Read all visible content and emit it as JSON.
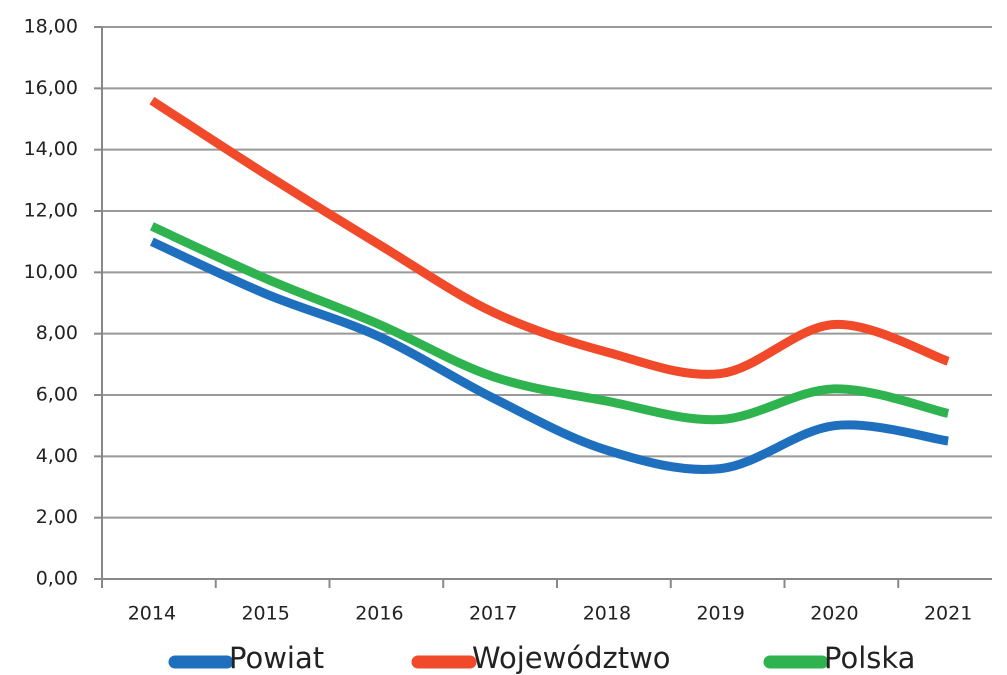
{
  "chart_data": {
    "type": "line",
    "categories": [
      "2014",
      "2015",
      "2016",
      "2017",
      "2018",
      "2019",
      "2020",
      "2021"
    ],
    "series": [
      {
        "name": "Powiat",
        "color": "#1f6fbf",
        "values": [
          11.0,
          9.3,
          7.9,
          5.9,
          4.2,
          3.6,
          5.0,
          4.5
        ]
      },
      {
        "name": "Województwo",
        "color": "#f04a2a",
        "values": [
          15.6,
          13.2,
          10.9,
          8.7,
          7.4,
          6.7,
          8.3,
          7.1
        ]
      },
      {
        "name": "Polska",
        "color": "#2eb34f",
        "values": [
          11.5,
          9.8,
          8.3,
          6.6,
          5.8,
          5.2,
          6.2,
          5.4
        ]
      }
    ],
    "ylim": [
      0,
      18
    ],
    "yticks": [
      {
        "value": 0,
        "label": "0,00"
      },
      {
        "value": 2,
        "label": "2,00"
      },
      {
        "value": 4,
        "label": "4,00"
      },
      {
        "value": 6,
        "label": "6,00"
      },
      {
        "value": 8,
        "label": "8,00"
      },
      {
        "value": 10,
        "label": "10,00"
      },
      {
        "value": 12,
        "label": "12,00"
      },
      {
        "value": 14,
        "label": "14,00"
      },
      {
        "value": 16,
        "label": "16,00"
      },
      {
        "value": 18,
        "label": "18,00"
      }
    ],
    "grid": true,
    "smooth": true,
    "legend": "bottom"
  }
}
